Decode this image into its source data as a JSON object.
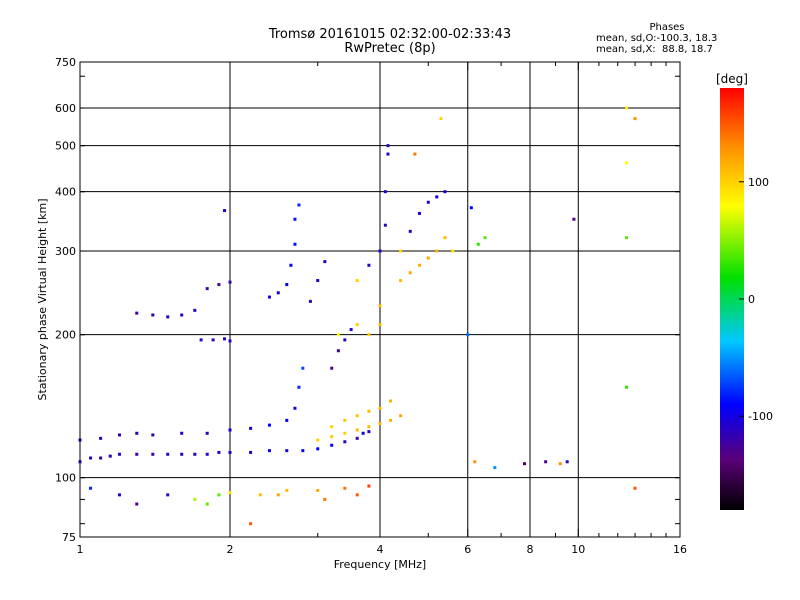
{
  "title": "Tromsø 20161015 02:32:00-02:33:43",
  "subtitle": "RwPretec (8p)",
  "stats": {
    "heading": "Phases",
    "line1": "mean, sd,O:-100.3, 18.3",
    "line2": "mean, sd,X:  88.8, 18.7"
  },
  "colorbar": {
    "title": "[deg]",
    "ticks": [
      {
        "label": "100",
        "value": 100
      },
      {
        "label": "0",
        "value": 0
      },
      {
        "label": "-100",
        "value": -100
      }
    ],
    "range": [
      -180,
      180
    ]
  },
  "chart_data": {
    "type": "scatter",
    "xlabel": "Frequency [MHz]",
    "ylabel": "Stationary phase Virtual Height [km]",
    "xscale": "log",
    "yscale": "log",
    "xlim": [
      1,
      16
    ],
    "ylim": [
      75,
      750
    ],
    "xticks": [
      {
        "label": "1",
        "value": 1
      },
      {
        "label": "2",
        "value": 2
      },
      {
        "label": "4",
        "value": 4
      },
      {
        "label": "6",
        "value": 6
      },
      {
        "label": "8",
        "value": 8
      },
      {
        "label": "10",
        "value": 10
      },
      {
        "label": "16",
        "value": 16
      }
    ],
    "xgrid": [
      2,
      4,
      6,
      8,
      10
    ],
    "yticks": [
      {
        "label": "75",
        "value": 75
      },
      {
        "label": "100",
        "value": 100
      },
      {
        "label": "200",
        "value": 200
      },
      {
        "label": "300",
        "value": 300
      },
      {
        "label": "400",
        "value": 400
      },
      {
        "label": "500",
        "value": 500
      },
      {
        "label": "600",
        "value": 600
      },
      {
        "label": "750",
        "value": 750
      }
    ],
    "ygrid": [
      100,
      200,
      300,
      400,
      500,
      600
    ],
    "grid": true,
    "color_scale": "phase (deg), rainbow from black (-180) through blue, cyan, green, yellow to red (180)",
    "points": [
      {
        "x": 1.0,
        "y": 108,
        "c": -110
      },
      {
        "x": 1.05,
        "y": 110,
        "c": -115
      },
      {
        "x": 1.1,
        "y": 110,
        "c": -112
      },
      {
        "x": 1.15,
        "y": 111,
        "c": -118
      },
      {
        "x": 1.2,
        "y": 112,
        "c": -115
      },
      {
        "x": 1.3,
        "y": 112,
        "c": -120
      },
      {
        "x": 1.4,
        "y": 112,
        "c": -118
      },
      {
        "x": 1.5,
        "y": 112,
        "c": -115
      },
      {
        "x": 1.6,
        "y": 112,
        "c": -115
      },
      {
        "x": 1.7,
        "y": 112,
        "c": -110
      },
      {
        "x": 1.8,
        "y": 112,
        "c": -110
      },
      {
        "x": 1.9,
        "y": 113,
        "c": -108
      },
      {
        "x": 2.0,
        "y": 113,
        "c": -110
      },
      {
        "x": 2.2,
        "y": 113,
        "c": -105
      },
      {
        "x": 2.4,
        "y": 114,
        "c": -100
      },
      {
        "x": 2.6,
        "y": 114,
        "c": -100
      },
      {
        "x": 2.8,
        "y": 114,
        "c": -95
      },
      {
        "x": 3.0,
        "y": 115,
        "c": -90
      },
      {
        "x": 3.2,
        "y": 117,
        "c": -95
      },
      {
        "x": 3.4,
        "y": 119,
        "c": -110
      },
      {
        "x": 3.6,
        "y": 121,
        "c": -120
      },
      {
        "x": 3.7,
        "y": 124,
        "c": -100
      },
      {
        "x": 3.8,
        "y": 125,
        "c": -115
      },
      {
        "x": 1.0,
        "y": 120,
        "c": -90
      },
      {
        "x": 1.1,
        "y": 121,
        "c": -115
      },
      {
        "x": 1.2,
        "y": 123,
        "c": -120
      },
      {
        "x": 1.3,
        "y": 124,
        "c": -110
      },
      {
        "x": 1.4,
        "y": 123,
        "c": -115
      },
      {
        "x": 1.6,
        "y": 124,
        "c": -110
      },
      {
        "x": 1.8,
        "y": 124,
        "c": -110
      },
      {
        "x": 2.0,
        "y": 126,
        "c": -100
      },
      {
        "x": 2.2,
        "y": 127,
        "c": -100
      },
      {
        "x": 2.4,
        "y": 129,
        "c": -90
      },
      {
        "x": 2.6,
        "y": 132,
        "c": -90
      },
      {
        "x": 2.7,
        "y": 140,
        "c": -95
      },
      {
        "x": 2.75,
        "y": 155,
        "c": -80
      },
      {
        "x": 2.8,
        "y": 170,
        "c": -70
      },
      {
        "x": 3.0,
        "y": 120,
        "c": 100
      },
      {
        "x": 3.2,
        "y": 122,
        "c": 105
      },
      {
        "x": 3.4,
        "y": 124,
        "c": 100
      },
      {
        "x": 3.6,
        "y": 126,
        "c": 110
      },
      {
        "x": 3.8,
        "y": 128,
        "c": 110
      },
      {
        "x": 4.0,
        "y": 130,
        "c": 115
      },
      {
        "x": 4.2,
        "y": 132,
        "c": 115
      },
      {
        "x": 4.4,
        "y": 135,
        "c": 120
      },
      {
        "x": 3.2,
        "y": 128,
        "c": 100
      },
      {
        "x": 3.4,
        "y": 132,
        "c": 105
      },
      {
        "x": 3.6,
        "y": 135,
        "c": 108
      },
      {
        "x": 3.8,
        "y": 138,
        "c": 110
      },
      {
        "x": 4.0,
        "y": 140,
        "c": 110
      },
      {
        "x": 4.2,
        "y": 145,
        "c": 115
      },
      {
        "x": 1.75,
        "y": 195,
        "c": -115
      },
      {
        "x": 1.85,
        "y": 195,
        "c": -120
      },
      {
        "x": 1.95,
        "y": 196,
        "c": -115
      },
      {
        "x": 2.0,
        "y": 194,
        "c": -110
      },
      {
        "x": 1.3,
        "y": 222,
        "c": -120
      },
      {
        "x": 1.4,
        "y": 220,
        "c": -115
      },
      {
        "x": 1.5,
        "y": 218,
        "c": -110
      },
      {
        "x": 1.6,
        "y": 220,
        "c": -110
      },
      {
        "x": 1.7,
        "y": 225,
        "c": -115
      },
      {
        "x": 1.8,
        "y": 250,
        "c": -120
      },
      {
        "x": 1.9,
        "y": 255,
        "c": -125
      },
      {
        "x": 2.0,
        "y": 258,
        "c": -120
      },
      {
        "x": 1.95,
        "y": 365,
        "c": -110
      },
      {
        "x": 2.4,
        "y": 240,
        "c": -105
      },
      {
        "x": 2.5,
        "y": 245,
        "c": -100
      },
      {
        "x": 2.6,
        "y": 255,
        "c": -95
      },
      {
        "x": 2.65,
        "y": 280,
        "c": -90
      },
      {
        "x": 2.7,
        "y": 310,
        "c": -85
      },
      {
        "x": 2.7,
        "y": 350,
        "c": -85
      },
      {
        "x": 2.75,
        "y": 375,
        "c": -80
      },
      {
        "x": 2.9,
        "y": 235,
        "c": -115
      },
      {
        "x": 3.0,
        "y": 260,
        "c": -110
      },
      {
        "x": 3.1,
        "y": 285,
        "c": -105
      },
      {
        "x": 3.2,
        "y": 170,
        "c": -130
      },
      {
        "x": 3.3,
        "y": 185,
        "c": -120
      },
      {
        "x": 3.4,
        "y": 195,
        "c": -110
      },
      {
        "x": 3.5,
        "y": 205,
        "c": -110
      },
      {
        "x": 3.3,
        "y": 200,
        "c": 80
      },
      {
        "x": 3.6,
        "y": 210,
        "c": 100
      },
      {
        "x": 3.8,
        "y": 200,
        "c": 105
      },
      {
        "x": 4.0,
        "y": 210,
        "c": 110
      },
      {
        "x": 4.0,
        "y": 230,
        "c": 110
      },
      {
        "x": 3.6,
        "y": 260,
        "c": 100
      },
      {
        "x": 3.8,
        "y": 280,
        "c": -110
      },
      {
        "x": 4.0,
        "y": 300,
        "c": -110
      },
      {
        "x": 4.1,
        "y": 340,
        "c": -115
      },
      {
        "x": 4.1,
        "y": 400,
        "c": -110
      },
      {
        "x": 4.15,
        "y": 480,
        "c": -110
      },
      {
        "x": 4.15,
        "y": 500,
        "c": -115
      },
      {
        "x": 4.4,
        "y": 260,
        "c": 110
      },
      {
        "x": 4.6,
        "y": 270,
        "c": 120
      },
      {
        "x": 4.8,
        "y": 280,
        "c": 115
      },
      {
        "x": 5.0,
        "y": 290,
        "c": 120
      },
      {
        "x": 5.2,
        "y": 300,
        "c": 115
      },
      {
        "x": 5.4,
        "y": 320,
        "c": 110
      },
      {
        "x": 4.6,
        "y": 330,
        "c": -110
      },
      {
        "x": 4.8,
        "y": 360,
        "c": -105
      },
      {
        "x": 5.0,
        "y": 380,
        "c": -110
      },
      {
        "x": 5.2,
        "y": 390,
        "c": -100
      },
      {
        "x": 5.4,
        "y": 400,
        "c": -100
      },
      {
        "x": 4.4,
        "y": 300,
        "c": 100
      },
      {
        "x": 4.7,
        "y": 480,
        "c": 140
      },
      {
        "x": 5.3,
        "y": 570,
        "c": 100
      },
      {
        "x": 5.6,
        "y": 300,
        "c": 90
      },
      {
        "x": 6.5,
        "y": 320,
        "c": 40
      },
      {
        "x": 6.3,
        "y": 310,
        "c": 30
      },
      {
        "x": 6.1,
        "y": 370,
        "c": -90
      },
      {
        "x": 6.0,
        "y": 200,
        "c": -60
      },
      {
        "x": 6.2,
        "y": 108,
        "c": 130
      },
      {
        "x": 6.8,
        "y": 105,
        "c": -50
      },
      {
        "x": 7.8,
        "y": 107,
        "c": -150
      },
      {
        "x": 8.6,
        "y": 108,
        "c": -130
      },
      {
        "x": 9.2,
        "y": 107,
        "c": 130
      },
      {
        "x": 9.5,
        "y": 108,
        "c": -110
      },
      {
        "x": 9.8,
        "y": 350,
        "c": -140
      },
      {
        "x": 12.5,
        "y": 600,
        "c": 90
      },
      {
        "x": 12.5,
        "y": 460,
        "c": 80
      },
      {
        "x": 12.5,
        "y": 320,
        "c": 40
      },
      {
        "x": 12.5,
        "y": 155,
        "c": 30
      },
      {
        "x": 13.0,
        "y": 570,
        "c": 130
      },
      {
        "x": 13.0,
        "y": 95,
        "c": 150
      },
      {
        "x": 1.05,
        "y": 95,
        "c": -80
      },
      {
        "x": 1.2,
        "y": 92,
        "c": -110
      },
      {
        "x": 1.3,
        "y": 88,
        "c": -130
      },
      {
        "x": 1.5,
        "y": 92,
        "c": -115
      },
      {
        "x": 1.7,
        "y": 90,
        "c": 60
      },
      {
        "x": 1.8,
        "y": 88,
        "c": 40
      },
      {
        "x": 1.9,
        "y": 92,
        "c": 40
      },
      {
        "x": 2.0,
        "y": 93,
        "c": 90
      },
      {
        "x": 2.3,
        "y": 92,
        "c": 110
      },
      {
        "x": 2.5,
        "y": 92,
        "c": 120
      },
      {
        "x": 2.6,
        "y": 94,
        "c": 110
      },
      {
        "x": 3.0,
        "y": 94,
        "c": 120
      },
      {
        "x": 3.1,
        "y": 90,
        "c": 140
      },
      {
        "x": 3.4,
        "y": 95,
        "c": 140
      },
      {
        "x": 3.6,
        "y": 92,
        "c": 150
      },
      {
        "x": 3.8,
        "y": 96,
        "c": 160
      },
      {
        "x": 2.2,
        "y": 80,
        "c": 150
      }
    ]
  }
}
